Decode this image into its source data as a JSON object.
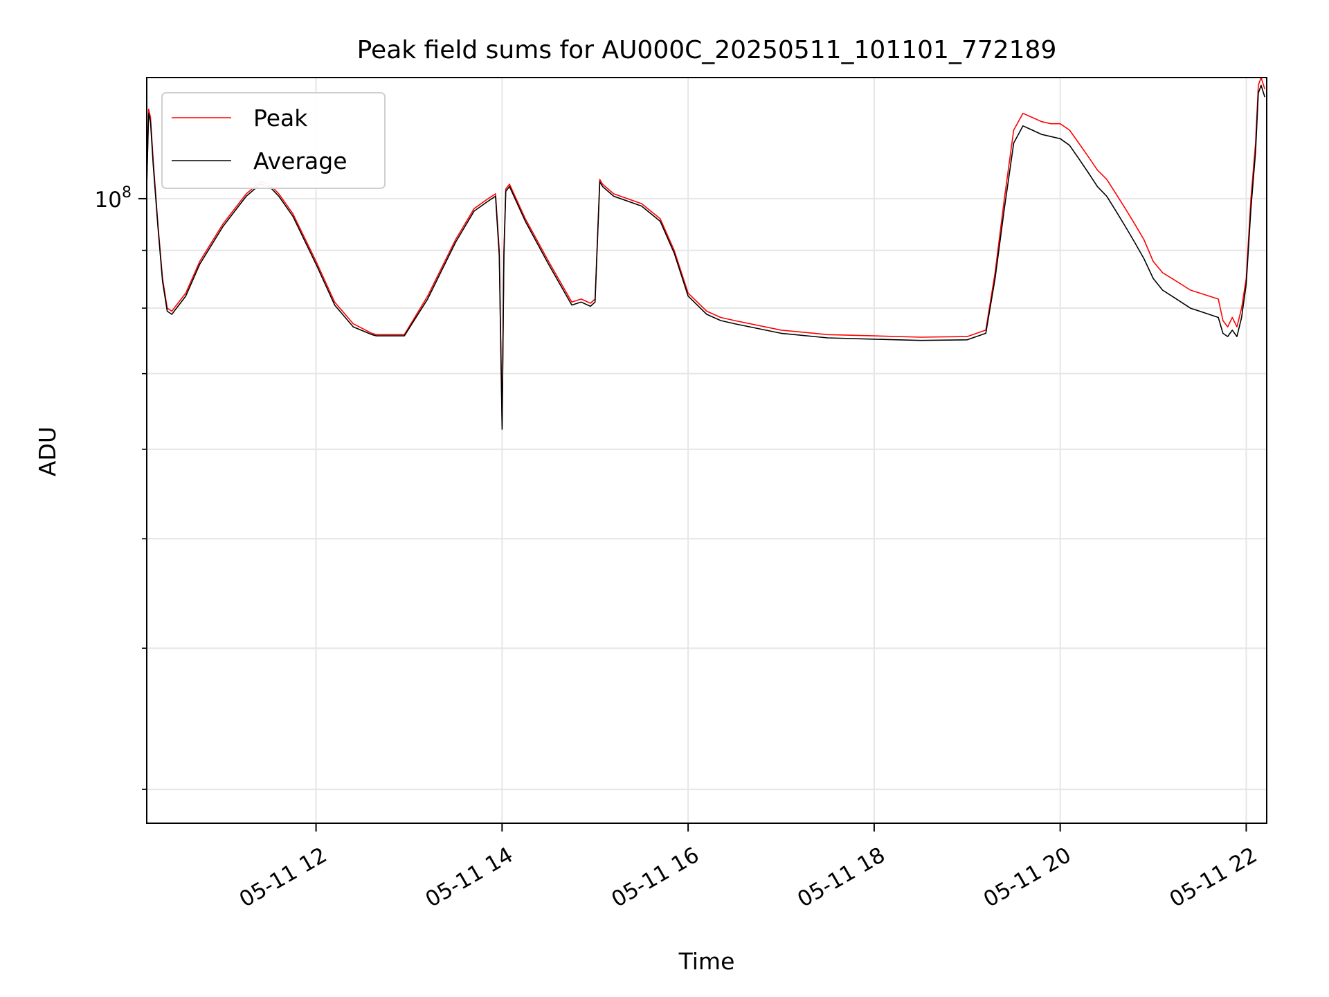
{
  "chart_data": {
    "type": "line",
    "title": "Peak field sums for AU000C_20250511_101101_772189",
    "xlabel": "Time",
    "ylabel": "ADU",
    "yscale": "log",
    "ylim": [
      28000000,
      128000000
    ],
    "xlim": [
      10.18,
      22.22
    ],
    "x_unit": "hours of 2025-05-11",
    "x_ticks": [
      {
        "value": 12,
        "label": "05-11 12"
      },
      {
        "value": 14,
        "label": "05-11 14"
      },
      {
        "value": 16,
        "label": "05-11 16"
      },
      {
        "value": 18,
        "label": "05-11 18"
      },
      {
        "value": 20,
        "label": "05-11 20"
      },
      {
        "value": 22,
        "label": "05-11 22"
      }
    ],
    "y_major_ticks": [
      {
        "value": 100000000,
        "base": "10",
        "exponent": "8"
      }
    ],
    "y_minor_ticks": [
      30000000,
      40000000,
      50000000,
      60000000,
      70000000,
      80000000,
      90000000
    ],
    "grid": true,
    "legend_position": "top-left",
    "series": [
      {
        "name": "Peak",
        "color": "#ff0000",
        "x": [
          10.18,
          10.2,
          10.22,
          10.25,
          10.3,
          10.35,
          10.4,
          10.45,
          10.5,
          10.6,
          10.75,
          11.0,
          11.25,
          11.4,
          11.5,
          11.6,
          11.75,
          12.0,
          12.2,
          12.4,
          12.6,
          12.65,
          12.95,
          13.2,
          13.5,
          13.7,
          13.85,
          13.93,
          13.97,
          14.0,
          14.02,
          14.04,
          14.08,
          14.25,
          14.5,
          14.75,
          14.85,
          14.95,
          15.0,
          15.05,
          15.08,
          15.2,
          15.5,
          15.7,
          15.85,
          16.0,
          16.2,
          16.35,
          16.5,
          17.0,
          17.5,
          18.0,
          18.5,
          19.0,
          19.2,
          19.3,
          19.4,
          19.5,
          19.6,
          19.7,
          19.8,
          19.9,
          20.0,
          20.1,
          20.2,
          20.3,
          20.4,
          20.5,
          20.6,
          20.7,
          20.8,
          20.9,
          21.0,
          21.1,
          21.2,
          21.3,
          21.4,
          21.5,
          21.6,
          21.7,
          21.75,
          21.8,
          21.85,
          21.9,
          21.95,
          22.0,
          22.05,
          22.1,
          22.13,
          22.16,
          22.2
        ],
        "y": [
          103000000,
          120000000,
          118000000,
          108000000,
          95000000,
          85000000,
          80000000,
          79500000,
          80500000,
          82500000,
          88000000,
          95000000,
          101000000,
          103500000,
          103000000,
          101000000,
          97000000,
          88000000,
          81000000,
          77500000,
          76000000,
          75800000,
          75800000,
          82000000,
          92000000,
          98000000,
          100000000,
          101000000,
          90000000,
          63000000,
          90000000,
          102000000,
          103000000,
          96000000,
          88000000,
          81000000,
          81500000,
          80800000,
          81500000,
          104000000,
          103000000,
          101000000,
          99000000,
          96000000,
          90000000,
          82500000,
          79500000,
          78500000,
          78000000,
          76500000,
          75800000,
          75600000,
          75400000,
          75500000,
          76500000,
          86000000,
          100000000,
          115000000,
          119000000,
          118000000,
          117000000,
          116500000,
          116500000,
          115000000,
          112000000,
          109000000,
          106000000,
          104000000,
          101000000,
          98000000,
          95000000,
          92000000,
          88000000,
          86000000,
          85000000,
          84000000,
          83000000,
          82500000,
          82000000,
          81500000,
          78000000,
          77000000,
          78500000,
          77000000,
          80000000,
          85000000,
          100000000,
          112000000,
          126000000,
          128000000,
          125000000
        ]
      },
      {
        "name": "Average",
        "color": "#000000",
        "x": [
          10.18,
          10.2,
          10.22,
          10.25,
          10.3,
          10.35,
          10.4,
          10.45,
          10.5,
          10.6,
          10.75,
          11.0,
          11.25,
          11.4,
          11.5,
          11.6,
          11.75,
          12.0,
          12.2,
          12.4,
          12.6,
          12.65,
          12.95,
          13.2,
          13.5,
          13.7,
          13.85,
          13.93,
          13.97,
          14.0,
          14.02,
          14.04,
          14.08,
          14.25,
          14.5,
          14.75,
          14.85,
          14.95,
          15.0,
          15.05,
          15.08,
          15.2,
          15.5,
          15.7,
          15.85,
          16.0,
          16.2,
          16.35,
          16.5,
          17.0,
          17.5,
          18.0,
          18.5,
          19.0,
          19.2,
          19.3,
          19.4,
          19.5,
          19.6,
          19.7,
          19.8,
          19.9,
          20.0,
          20.1,
          20.2,
          20.3,
          20.4,
          20.5,
          20.6,
          20.7,
          20.8,
          20.9,
          21.0,
          21.1,
          21.2,
          21.3,
          21.4,
          21.5,
          21.6,
          21.7,
          21.75,
          21.8,
          21.85,
          21.9,
          21.95,
          22.0,
          22.05,
          22.1,
          22.13,
          22.16,
          22.2
        ],
        "y": [
          102500000,
          119000000,
          117000000,
          107000000,
          94500000,
          84500000,
          79500000,
          79000000,
          80000000,
          82000000,
          87500000,
          94500000,
          100500000,
          103000000,
          102500000,
          100500000,
          96500000,
          87500000,
          80500000,
          77000000,
          75800000,
          75600000,
          75600000,
          81500000,
          91500000,
          97500000,
          99500000,
          100500000,
          89000000,
          62500000,
          89000000,
          101500000,
          102500000,
          95500000,
          87500000,
          80500000,
          81000000,
          80300000,
          81000000,
          103500000,
          102500000,
          100500000,
          98500000,
          95500000,
          89500000,
          82000000,
          79000000,
          78000000,
          77500000,
          76000000,
          75300000,
          75100000,
          74900000,
          75000000,
          76000000,
          85000000,
          98000000,
          112000000,
          116000000,
          115000000,
          114000000,
          113500000,
          113000000,
          111500000,
          108500000,
          105500000,
          102500000,
          100500000,
          97500000,
          94500000,
          91500000,
          88500000,
          85000000,
          83000000,
          82000000,
          81000000,
          80000000,
          79500000,
          79000000,
          78500000,
          76000000,
          75500000,
          76500000,
          75500000,
          78500000,
          84000000,
          98000000,
          110000000,
          124000000,
          126000000,
          123000000
        ]
      }
    ]
  }
}
